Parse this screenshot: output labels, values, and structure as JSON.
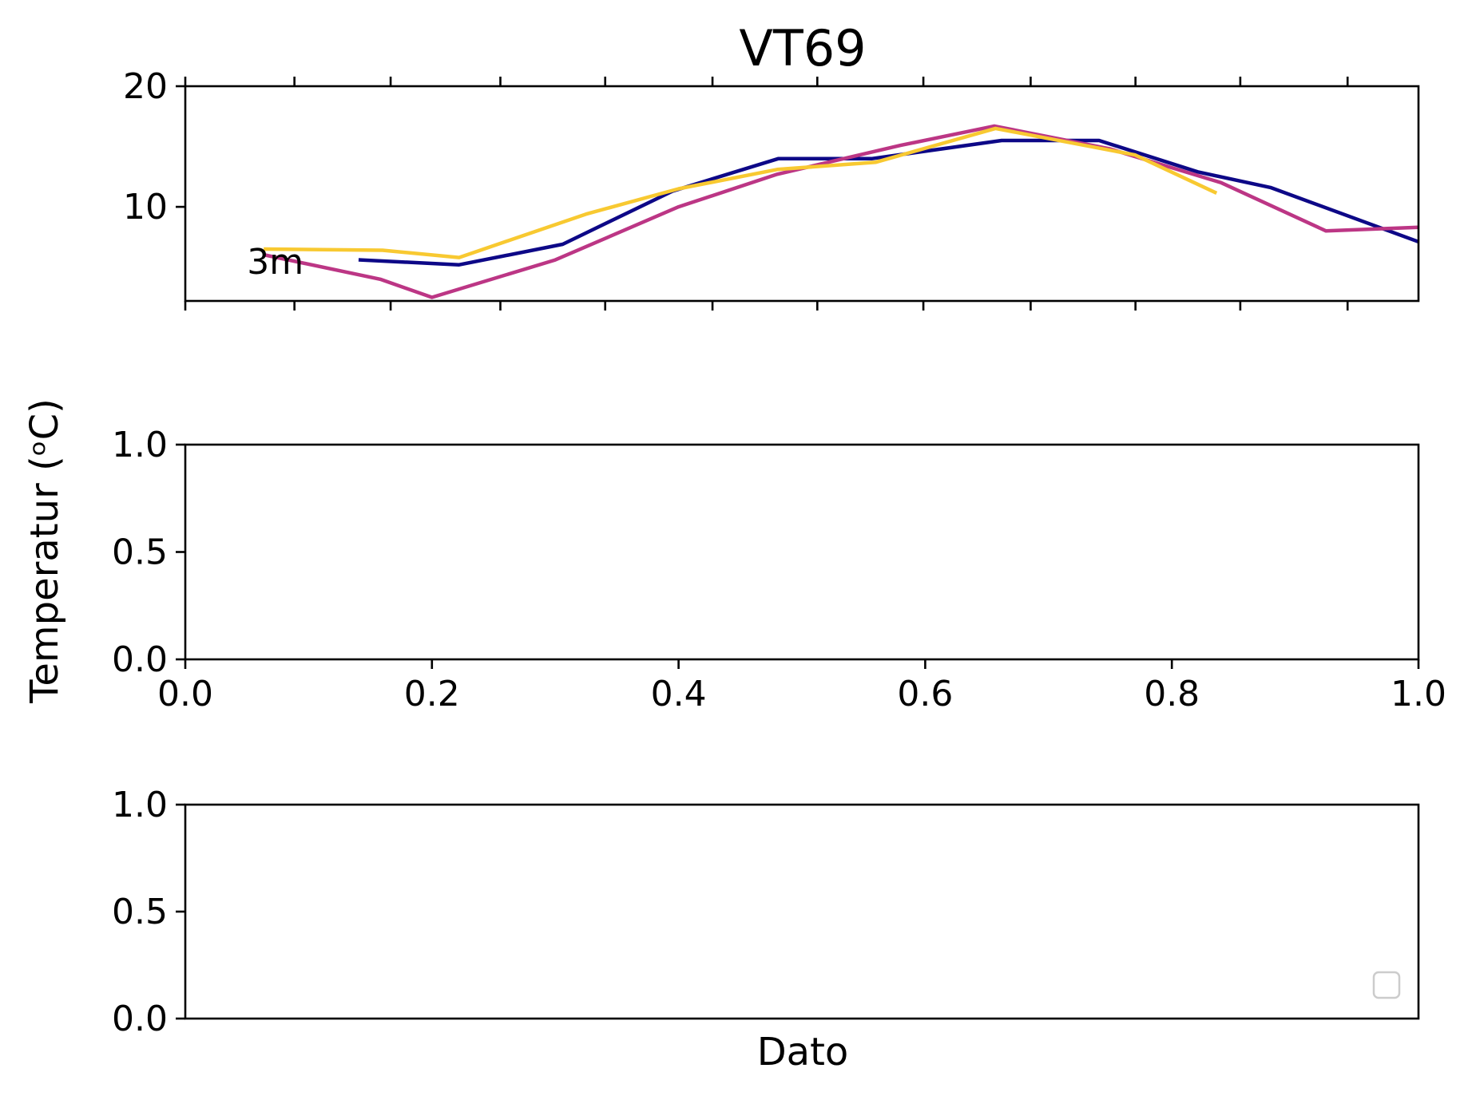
{
  "title": "VT69",
  "ylabel": "Temperatur (ᵒC)",
  "xlabel": "Dato",
  "colors": {
    "frame": "#000000",
    "background": "#ffffff",
    "legend_border": "#cccccc"
  },
  "chart_data": [
    {
      "type": "line",
      "panel": "top",
      "xlim": [
        0,
        1
      ],
      "ylim": [
        2.2,
        20
      ],
      "yticks": [
        "10",
        "20"
      ],
      "ytick_values": [
        10,
        20
      ],
      "xtick_values": [
        0,
        0.0885,
        0.1665,
        0.2555,
        0.3405,
        0.4275,
        0.5125,
        0.5985,
        0.6855,
        0.7705,
        0.8555,
        0.9425
      ],
      "annotation": {
        "text": "3m",
        "x": 0.073,
        "y": 5.5
      },
      "series": [
        {
          "color": "#0d0887",
          "x": [
            0.142,
            0.222,
            0.306,
            0.395,
            0.481,
            0.557,
            0.662,
            0.741,
            0.821,
            0.88,
            1.0
          ],
          "y": [
            5.6,
            5.2,
            6.9,
            11.3,
            14.0,
            14.0,
            15.5,
            15.5,
            12.9,
            11.6,
            7.1
          ]
        },
        {
          "color": "#bc3685",
          "x": [
            0.065,
            0.158,
            0.2,
            0.3,
            0.4,
            0.48,
            0.58,
            0.656,
            0.75,
            0.84,
            0.925,
            1.0
          ],
          "y": [
            6.0,
            4.0,
            2.5,
            5.6,
            10.0,
            12.7,
            15.1,
            16.7,
            14.8,
            12.0,
            8.0,
            8.3
          ]
        },
        {
          "color": "#f8c931",
          "x": [
            0.065,
            0.16,
            0.222,
            0.325,
            0.4,
            0.48,
            0.56,
            0.657,
            0.77,
            0.835
          ],
          "y": [
            6.5,
            6.4,
            5.8,
            9.4,
            11.5,
            13.1,
            13.7,
            16.5,
            14.3,
            11.2
          ]
        }
      ]
    },
    {
      "type": "line",
      "panel": "middle",
      "xlim": [
        0,
        1
      ],
      "ylim": [
        0,
        1
      ],
      "yticks": [
        "0.0",
        "0.5",
        "1.0"
      ],
      "ytick_values": [
        0,
        0.5,
        1
      ],
      "xticks": [
        "0.0",
        "0.2",
        "0.4",
        "0.6",
        "0.8",
        "1.0"
      ],
      "xtick_values": [
        0,
        0.2,
        0.4,
        0.6,
        0.8,
        1.0
      ],
      "series": []
    },
    {
      "type": "line",
      "panel": "bottom",
      "xlim": [
        0,
        1
      ],
      "ylim": [
        0,
        1
      ],
      "yticks": [
        "0.0",
        "0.5",
        "1.0"
      ],
      "ytick_values": [
        0,
        0.5,
        1
      ],
      "legend": "lower right",
      "series": []
    }
  ]
}
